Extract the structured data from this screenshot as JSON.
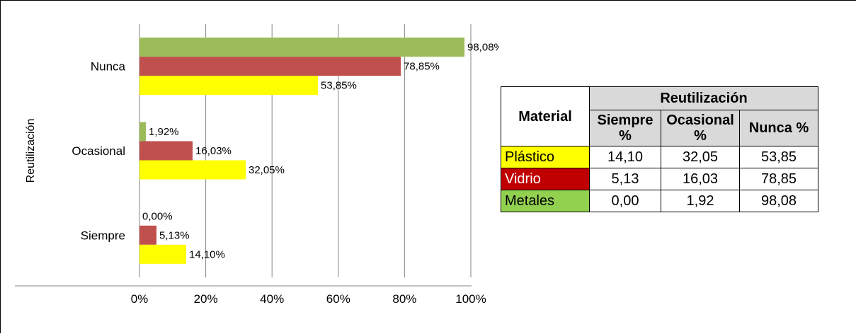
{
  "chart_data": {
    "type": "bar",
    "orientation": "horizontal",
    "categories": [
      "Siempre",
      "Ocasional",
      "Nunca"
    ],
    "series": [
      {
        "name": "Plástico",
        "values": [
          14.1,
          32.05,
          53.85
        ],
        "labels": [
          "14,10%",
          "32,05%",
          "53,85%"
        ],
        "color": "#FFFF00"
      },
      {
        "name": "Vidrio",
        "values": [
          5.13,
          16.03,
          78.85
        ],
        "labels": [
          "5,13%",
          "16,03%",
          "78,85%"
        ],
        "color": "#C0504D"
      },
      {
        "name": "Metales",
        "values": [
          0.0,
          1.92,
          98.08
        ],
        "labels": [
          "0,00%",
          "1,92%",
          "98,08%"
        ],
        "color": "#9BBB59"
      }
    ],
    "xlim": [
      0,
      100
    ],
    "xticks": [
      "0%",
      "20%",
      "40%",
      "60%",
      "80%",
      "100%"
    ],
    "ylabel": "Reutilización",
    "grid": true,
    "legend": "none"
  },
  "table": {
    "header_material": "Material",
    "header_group": "Reutilización",
    "columns": [
      "Siempre %",
      "Ocasional %",
      "Nunca %"
    ],
    "rows": [
      {
        "material": "Plástico",
        "color": "#FFFF00",
        "text_color": "#000000",
        "values": [
          "14,10",
          "32,05",
          "53,85"
        ]
      },
      {
        "material": "Vidrio",
        "color": "#C00000",
        "text_color": "#FFFFFF",
        "values": [
          "5,13",
          "16,03",
          "78,85"
        ]
      },
      {
        "material": "Metales",
        "color": "#92D050",
        "text_color": "#000000",
        "values": [
          "0,00",
          "1,92",
          "98,08"
        ]
      }
    ]
  }
}
